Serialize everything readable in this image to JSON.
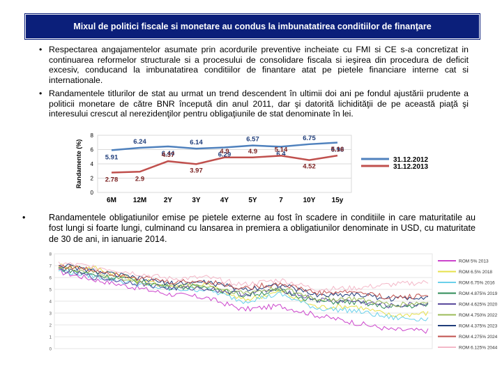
{
  "title": "Mixul de politici fiscale si monetare au condus la imbunatatirea conditiilor de finanţare",
  "bullets": {
    "b1": "Respectarea angajamentelor asumate prin acordurile preventive incheiate cu FMI si CE s-a concretizat in continuarea reformelor structurale si a procesului de consolidare fiscala si ieşirea din procedura de deficit excesiv, conducand la imbunatatirea conditiilor de finantare atat pe pietele financiare interne cat si internationale.",
    "b2": "Randamentele titlurilor de stat au urmat un trend descendent în ultimii doi ani pe fondul ajustării prudente a politicii monetare de către BNR începută din anul 2011, dar şi datorită lichidităţii de pe această piaţă şi interesului crescut al nerezidenţilor pentru obligaţiunile de stat denominate în lei.",
    "b3": "Randamentele obligatiunilor emise pe pietele externe au fost în scadere in conditiile in care maturitatile au fost lungi si foarte lungi, culminand cu lansarea in premiera a obligatiunilor denominate in USD, cu maturitate de 30 de ani, in ianuarie 2014.",
    "marker": "•"
  },
  "chart_data": [
    {
      "type": "line",
      "ylabel": "Randamente (%)",
      "categories": [
        "6M",
        "12M",
        "2Y",
        "3Y",
        "4Y",
        "5Y",
        "7",
        "10Y",
        "15y"
      ],
      "ylim": [
        0,
        8
      ],
      "yticks": [
        "0",
        "2",
        "4",
        "6",
        "8"
      ],
      "grid": true,
      "legend_position": "right",
      "series": [
        {
          "name": "31.12.2012",
          "color": "#4f81bd",
          "values": [
            5.91,
            6.24,
            6.44,
            6.14,
            6.29,
            6.57,
            6.4,
            6.75,
            6.98
          ]
        },
        {
          "name": "31.12.2013",
          "color": "#c0504d",
          "values": [
            2.78,
            2.9,
            4.37,
            3.97,
            4.9,
            4.9,
            5.14,
            4.52,
            5.16
          ]
        }
      ]
    },
    {
      "type": "line",
      "ylim": [
        0,
        8
      ],
      "yticks": [
        "0",
        "1",
        "2",
        "3",
        "4",
        "5",
        "6",
        "7",
        "8"
      ],
      "grid": true,
      "legend_position": "right",
      "series": [
        {
          "name": "ROM 5% 2013",
          "color": "#cc44cc",
          "values": [
            6.5,
            5.8,
            5.2,
            4.6,
            4.3,
            3.3,
            3.6,
            2.8,
            2.2,
            1.6,
            1.5
          ]
        },
        {
          "name": "ROM 6.5% 2018",
          "color": "#e6e04a",
          "values": [
            7.0,
            6.8,
            5.9,
            5.3,
            5.4,
            4.1,
            4.8,
            3.5,
            3.6,
            2.8,
            3.0
          ]
        },
        {
          "name": "ROM 6.75% 2016",
          "color": "#6ad0ea",
          "values": [
            6.6,
            6.1,
            5.5,
            5.0,
            5.0,
            4.0,
            4.6,
            3.4,
            3.2,
            2.6,
            2.5
          ]
        },
        {
          "name": "ROM 4.875% 2019",
          "color": "#2e8b57",
          "values": [
            6.8,
            6.2,
            5.8,
            5.2,
            5.2,
            4.5,
            4.9,
            4.0,
            3.9,
            3.5,
            3.7
          ]
        },
        {
          "name": "ROM 4.625% 2020",
          "color": "#5b4a9c",
          "values": [
            6.7,
            6.0,
            5.6,
            5.1,
            5.1,
            4.6,
            5.0,
            4.1,
            4.0,
            3.6,
            3.8
          ]
        },
        {
          "name": "ROM 4.750% 2022",
          "color": "#9bbb59",
          "values": [
            6.9,
            6.4,
            5.7,
            5.3,
            5.3,
            4.7,
            5.1,
            4.2,
            4.2,
            3.7,
            3.9
          ]
        },
        {
          "name": "ROM 4.375% 2023",
          "color": "#1f3d7a",
          "values": [
            7.1,
            6.5,
            6.0,
            5.5,
            5.6,
            5.0,
            5.4,
            4.5,
            4.6,
            4.2,
            4.4
          ]
        },
        {
          "name": "ROM 4.275% 2024",
          "color": "#c0504d",
          "values": [
            7.0,
            6.6,
            6.1,
            5.6,
            5.7,
            5.1,
            5.5,
            4.7,
            4.8,
            4.3,
            4.5
          ]
        },
        {
          "name": "ROM 6.125% 2044",
          "color": "#f4b8c8",
          "values": [
            7.2,
            6.9,
            6.4,
            5.9,
            6.0,
            5.4,
            5.8,
            5.0,
            5.1,
            5.4,
            5.6
          ]
        }
      ]
    }
  ]
}
